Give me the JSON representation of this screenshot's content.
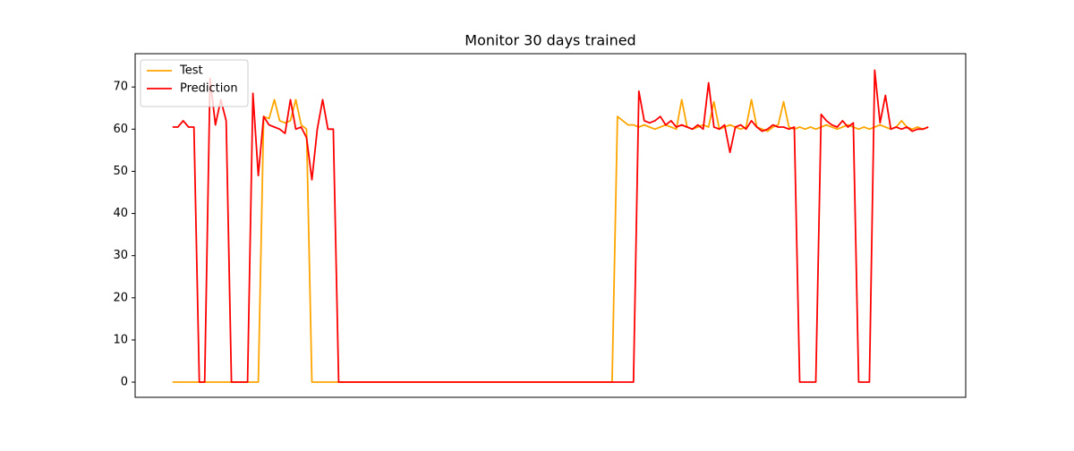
{
  "chart_data": {
    "type": "line",
    "title": "Monitor 30 days trained",
    "ylim": [
      -3.6,
      77.9
    ],
    "yticks": [
      0,
      10,
      20,
      30,
      40,
      50,
      60,
      70
    ],
    "grid": false,
    "legend": "upper left",
    "series": [
      {
        "name": "Test",
        "color": "#ffa500",
        "values": [
          0,
          0,
          0,
          0,
          0,
          0,
          0,
          0,
          0,
          0,
          0,
          0,
          0,
          0,
          0,
          0,
          0,
          63,
          62.5,
          67,
          62,
          61.5,
          62,
          67,
          61,
          60,
          0,
          0,
          0,
          0,
          0,
          0,
          0,
          0,
          0,
          0,
          0,
          0,
          0,
          0,
          0,
          0,
          0,
          0,
          0,
          0,
          0,
          0,
          0,
          0,
          0,
          0,
          0,
          0,
          0,
          0,
          0,
          0,
          0,
          0,
          0,
          0,
          0,
          0,
          0,
          0,
          0,
          0,
          0,
          0,
          0,
          0,
          0,
          0,
          0,
          0,
          0,
          0,
          0,
          0,
          0,
          0,
          0,
          63,
          62,
          61,
          61,
          60.5,
          61,
          60.5,
          60,
          60.5,
          61,
          60.5,
          60,
          67,
          60.5,
          60,
          60.5,
          61,
          60.5,
          66.5,
          60,
          60.5,
          61,
          60.5,
          60,
          60.5,
          67,
          60.5,
          60,
          59.5,
          60.5,
          61,
          66.5,
          60.5,
          60,
          60.5,
          60,
          60.5,
          60,
          60.5,
          61,
          60.5,
          60,
          60.5,
          61,
          60.5,
          60,
          60.5,
          60,
          60.5,
          61,
          60.5,
          60,
          60.5,
          62,
          60.5,
          60,
          60.5,
          60,
          60.5
        ]
      },
      {
        "name": "Prediction",
        "color": "#ff0000",
        "values": [
          60.5,
          60.5,
          62,
          60.5,
          60.5,
          0,
          0,
          72,
          61,
          67,
          62,
          0,
          0,
          0,
          0,
          68.5,
          49,
          63,
          61,
          60.5,
          60,
          59,
          67,
          60,
          60.5,
          58,
          48,
          60,
          67,
          60,
          60,
          0,
          0,
          0,
          0,
          0,
          0,
          0,
          0,
          0,
          0,
          0,
          0,
          0,
          0,
          0,
          0,
          0,
          0,
          0,
          0,
          0,
          0,
          0,
          0,
          0,
          0,
          0,
          0,
          0,
          0,
          0,
          0,
          0,
          0,
          0,
          0,
          0,
          0,
          0,
          0,
          0,
          0,
          0,
          0,
          0,
          0,
          0,
          0,
          0,
          0,
          0,
          0,
          0,
          0,
          0,
          0,
          69,
          62,
          61.5,
          62,
          63,
          61,
          62,
          60.5,
          61,
          60.5,
          60,
          61,
          60,
          71,
          60.5,
          60,
          61,
          54.5,
          60.5,
          61,
          60,
          62,
          60.5,
          59.5,
          60,
          61,
          60.5,
          60.5,
          60,
          60.5,
          0,
          0,
          0,
          0,
          63.5,
          62,
          61,
          60.5,
          62,
          60.5,
          61.5,
          0,
          0,
          0,
          74,
          61.5,
          68,
          60,
          60.5,
          60,
          60.5,
          59.5,
          60,
          60,
          60.5
        ]
      }
    ]
  }
}
